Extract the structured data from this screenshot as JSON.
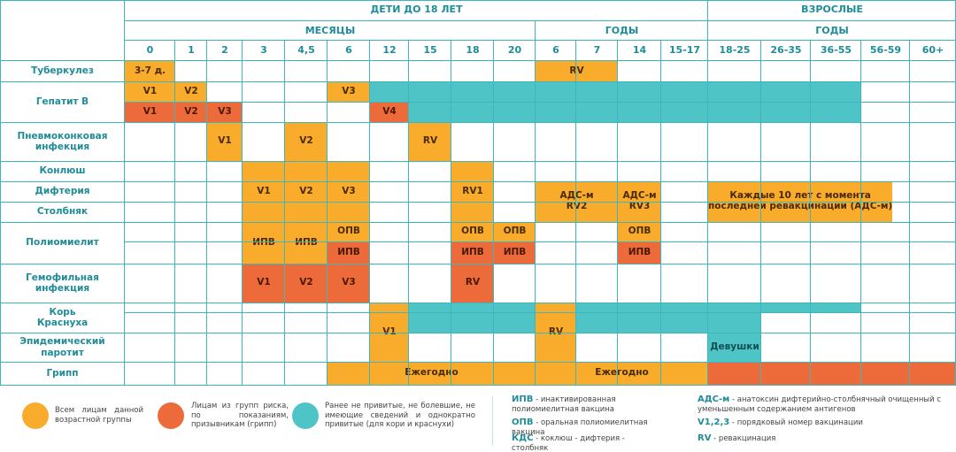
{
  "headers": {
    "children": "ДЕТИ ДО 18 ЛЕТ",
    "adults": "ВЗРОСЛЫЕ",
    "months": "МЕСЯЦЫ",
    "years_children": "ГОДЫ",
    "years_adults": "ГОДЫ"
  },
  "columns": [
    "0",
    "1",
    "2",
    "3",
    "4,5",
    "6",
    "12",
    "15",
    "18",
    "20",
    "6",
    "7",
    "14",
    "15-17",
    "18-25",
    "26-35",
    "36-55",
    "56-59",
    "60+"
  ],
  "rows": [
    "Туберкулез",
    "Гепатит В",
    "Пневмоконковая\nинфекция",
    "Конлюш",
    "Дифтерия",
    "Столбняк",
    "Полиомиелит",
    "Гемофильная\nинфекция",
    "Корь",
    "Краснуха",
    "Эпидемический\nпаротит",
    "Грипп"
  ],
  "schedule": [
    {
      "row": "Туберкулез",
      "from": "0",
      "to": "0",
      "label": "3-7 д.",
      "group": "all"
    },
    {
      "row": "Туберкулез",
      "from": "6 (лет)",
      "to": "7 (лет)",
      "label": "RV",
      "group": "all"
    },
    {
      "row": "Гепатит В",
      "from": "0",
      "to": "0",
      "label": "V1",
      "group": "all"
    },
    {
      "row": "Гепатит В",
      "from": "1",
      "to": "1",
      "label": "V2",
      "group": "all"
    },
    {
      "row": "Гепатит В",
      "from": "6",
      "to": "6",
      "label": "V3",
      "group": "all"
    },
    {
      "row": "Гепатит В",
      "from": "0",
      "to": "0",
      "label": "V1",
      "group": "risk"
    },
    {
      "row": "Гепатит В",
      "from": "1",
      "to": "1",
      "label": "V2",
      "group": "risk"
    },
    {
      "row": "Гепатит В",
      "from": "2",
      "to": "2",
      "label": "V3",
      "group": "risk"
    },
    {
      "row": "Гепатит В",
      "from": "12",
      "to": "12",
      "label": "V4",
      "group": "risk"
    },
    {
      "row": "Гепатит В",
      "from": "12",
      "to": "36-55",
      "label": "",
      "group": "unvaccinated"
    },
    {
      "row": "Пневмоконковая инфекция",
      "from": "2",
      "to": "2",
      "label": "V1",
      "group": "all"
    },
    {
      "row": "Пневмоконковая инфекция",
      "from": "4,5",
      "to": "4,5",
      "label": "V2",
      "group": "all"
    },
    {
      "row": "Пневмоконковая инфекция",
      "from": "15",
      "to": "15",
      "label": "RV",
      "group": "all"
    },
    {
      "row": "Конлюш / Дифтерия / Столбняк",
      "from": "3",
      "to": "3",
      "label": "V1",
      "group": "all"
    },
    {
      "row": "Конлюш / Дифтерия / Столбняк",
      "from": "4,5",
      "to": "4,5",
      "label": "V2",
      "group": "all"
    },
    {
      "row": "Конлюш / Дифтерия / Столбняк",
      "from": "6",
      "to": "6",
      "label": "V3",
      "group": "all"
    },
    {
      "row": "Конлюш / Дифтерия / Столбняк",
      "from": "18",
      "to": "18",
      "label": "RV1",
      "group": "all"
    },
    {
      "row": "Дифтерия / Столбняк",
      "from": "6 (лет)",
      "to": "7 (лет)",
      "label": "АДС-м\nRV2",
      "group": "all"
    },
    {
      "row": "Дифтерия / Столбняк",
      "from": "14",
      "to": "14",
      "label": "АДС-м\nRV3",
      "group": "all"
    },
    {
      "row": "Дифтерия / Столбняк",
      "from": "18-25",
      "to": "60+",
      "label": "Каждые 10 лет с момента\nпоследней ревакцинации (АДС-м)",
      "group": "all"
    },
    {
      "row": "Полиомиелит",
      "from": "3",
      "to": "3",
      "label": "ИПВ",
      "group": "all"
    },
    {
      "row": "Полиомиелит",
      "from": "4,5",
      "to": "4,5",
      "label": "ИПВ",
      "group": "all"
    },
    {
      "row": "Полиомиелит",
      "from": "6",
      "to": "6",
      "label": "ОПВ",
      "group": "all"
    },
    {
      "row": "Полиомиелит",
      "from": "6",
      "to": "6",
      "label": "ИПВ",
      "group": "risk"
    },
    {
      "row": "Полиомиелит",
      "from": "18",
      "to": "18",
      "label": "ОПВ",
      "group": "all"
    },
    {
      "row": "Полиомиелит",
      "from": "18",
      "to": "18",
      "label": "ИПВ",
      "group": "risk"
    },
    {
      "row": "Полиомиелит",
      "from": "20",
      "to": "20",
      "label": "ОПВ",
      "group": "all"
    },
    {
      "row": "Полиомиелит",
      "from": "20",
      "to": "20",
      "label": "ИПВ",
      "group": "risk"
    },
    {
      "row": "Полиомиелит",
      "from": "14",
      "to": "14",
      "label": "ОПВ",
      "group": "all"
    },
    {
      "row": "Полиомиелит",
      "from": "14",
      "to": "14",
      "label": "ИПВ",
      "group": "risk"
    },
    {
      "row": "Гемофильная инфекция",
      "from": "3",
      "to": "3",
      "label": "V1",
      "group": "risk"
    },
    {
      "row": "Гемофильная инфекция",
      "from": "4,5",
      "to": "4,5",
      "label": "V2",
      "group": "risk"
    },
    {
      "row": "Гемофильная инфекция",
      "from": "6",
      "to": "6",
      "label": "V3",
      "group": "risk"
    },
    {
      "row": "Гемофильная инфекция",
      "from": "18",
      "to": "18",
      "label": "RV",
      "group": "risk"
    },
    {
      "row": "Корь / Краснуха / Эпидемический паротит",
      "from": "12",
      "to": "12",
      "label": "V1",
      "group": "all"
    },
    {
      "row": "Корь / Краснуха / Эпидемический паротит",
      "from": "6 (лет)",
      "to": "6 (лет)",
      "label": "RV",
      "group": "all"
    },
    {
      "row": "Корь",
      "from": "15",
      "to": "20",
      "label": "",
      "group": "unvaccinated"
    },
    {
      "row": "Корь",
      "from": "7",
      "to": "26-35",
      "label": "",
      "group": "unvaccinated"
    },
    {
      "row": "Краснуха",
      "from": "15",
      "to": "20",
      "label": "",
      "group": "unvaccinated"
    },
    {
      "row": "Краснуха",
      "from": "7",
      "to": "15-17",
      "label": "",
      "group": "unvaccinated"
    },
    {
      "row": "Краснуха",
      "from": "18-25",
      "to": "18-25",
      "label": "Девушки",
      "group": "unvaccinated"
    },
    {
      "row": "Грипп",
      "from": "6",
      "to": "20",
      "label": "Ежегодно",
      "group": "all"
    },
    {
      "row": "Грипп",
      "from": "6 (лет)",
      "to": "15-17",
      "label": "Ежегодно",
      "group": "all"
    },
    {
      "row": "Грипп",
      "from": "18-25",
      "to": "56-59",
      "label": "",
      "group": "risk"
    },
    {
      "row": "Грипп",
      "from": "60+",
      "to": "60+",
      "label": "",
      "group": "all"
    }
  ],
  "colors": {
    "all": "#f9ac2b",
    "risk": "#ed6a3b",
    "unvaccinated": "#4fc4c7",
    "grid": "#3fb5bd",
    "header_text": "#1f8c98"
  },
  "legend": {
    "all": "Всем лицам данной возрастной группы",
    "risk": "Лицам из групп риска, по показаниям, призывникам (грипп)",
    "unvaccinated": "Ранее не привитые, не болевшие, не имеющие сведений и однократно привитые (для кори и краснухи)"
  },
  "abbreviations": [
    {
      "key": "ИПВ",
      "text": "- инактивированная полиомиелитная вакцина"
    },
    {
      "key": "ОПВ",
      "text": "- оральная полиомиелитная вакцина"
    },
    {
      "key": "КДС",
      "text": "- коклюш - дифтерия - столбняк"
    },
    {
      "key": "АДС-м",
      "text": "- анатоксин дифтерийно-столбнячный очищенный с уменьшенным содержанием антигенов"
    },
    {
      "key": "V1,2,3",
      "text": "- порядковый номер вакцинации"
    },
    {
      "key": "RV",
      "text": "- ревакцинация"
    }
  ]
}
